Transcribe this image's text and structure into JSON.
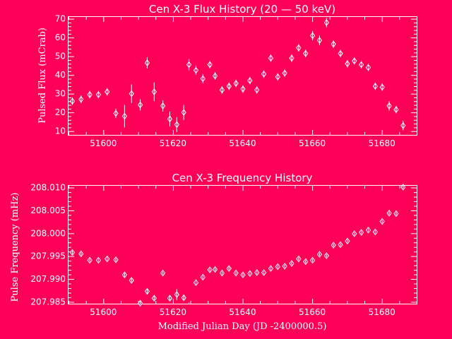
{
  "background": "#ff0059",
  "foreground": "#ffffff",
  "chart_data": [
    {
      "type": "scatter",
      "title": "Cen X-3 Flux History (20 — 50 keV)",
      "xlabel": "",
      "ylabel": "Pulsed Flux (mCrab)",
      "xlim": [
        51590,
        51690
      ],
      "ylim": [
        8,
        71
      ],
      "xticks": [
        51600,
        51620,
        51640,
        51660,
        51680
      ],
      "xtick_labels": [
        "51600",
        "51620",
        "51640",
        "51660",
        "51680"
      ],
      "yticks": [
        10,
        20,
        30,
        40,
        50,
        60,
        70
      ],
      "ytick_labels": [
        "10",
        "20",
        "30",
        "40",
        "50",
        "60",
        "70"
      ],
      "marker": "diamond",
      "error_bars": true,
      "series": [
        {
          "x": [
            51591,
            51593.5,
            51596,
            51598.5,
            51601,
            51603.5,
            51606,
            51608,
            51610.5,
            51612.5,
            51614.5,
            51617,
            51619,
            51621,
            51623,
            51624.5,
            51626.5,
            51628.5,
            51630.5,
            51632,
            51634,
            51636,
            51638,
            51640,
            51642,
            51644,
            51646,
            51648,
            51650,
            51652,
            51654,
            51656,
            51658,
            51660,
            51662,
            51664,
            51666,
            51668,
            51670,
            51672,
            51674,
            51676,
            51678,
            51680,
            51682,
            51684,
            51686
          ],
          "y": [
            26,
            27,
            29.5,
            29.5,
            31,
            19.5,
            18,
            30,
            24,
            46.5,
            31,
            23.5,
            16.5,
            13.5,
            20,
            45.5,
            42.5,
            38,
            45.5,
            39.5,
            32,
            34,
            35.5,
            32.5,
            37,
            32,
            40.5,
            49,
            39,
            41,
            49,
            54.5,
            51.5,
            61,
            58.5,
            68,
            56.5,
            51.5,
            46,
            47.5,
            45.5,
            44,
            34,
            33.5,
            23.5,
            21.5,
            13
          ],
          "err": [
            2,
            2,
            2,
            2,
            2,
            2.5,
            6,
            5,
            3,
            3,
            5,
            3,
            4,
            4,
            4,
            3,
            2.5,
            2.5,
            2,
            2,
            2,
            2,
            2,
            2,
            2,
            2,
            2,
            2,
            2,
            2,
            2,
            2,
            2,
            2.5,
            2.5,
            2.5,
            2,
            2,
            2,
            2,
            2,
            2,
            2,
            2,
            2.5,
            2,
            2.5
          ]
        }
      ]
    },
    {
      "type": "scatter",
      "title": "Cen X-3 Frequency History",
      "xlabel": "Modified Julian Day (JD -2400000.5)",
      "ylabel": "Pulse Frequency (mHz)",
      "xlim": [
        51590,
        51690
      ],
      "ylim": [
        207.9846,
        208.0104
      ],
      "xticks": [
        51600,
        51620,
        51640,
        51660,
        51680
      ],
      "xtick_labels": [
        "51600",
        "51620",
        "51640",
        "51660",
        "51680"
      ],
      "yticks": [
        207.985,
        207.99,
        207.995,
        208.0,
        208.005,
        208.01
      ],
      "ytick_labels": [
        "207.985",
        "207.990",
        "207.995",
        "208.000",
        "208.005",
        "208.010"
      ],
      "marker": "diamond",
      "error_bars": true,
      "series": [
        {
          "x": [
            51591,
            51593.5,
            51596,
            51598.5,
            51601,
            51603.5,
            51606,
            51608,
            51610.5,
            51612.5,
            51614.5,
            51617,
            51619,
            51621,
            51623,
            51624.5,
            51626.5,
            51628.5,
            51630.5,
            51632,
            51634,
            51636,
            51638,
            51640,
            51642,
            51644,
            51646,
            51648,
            51650,
            51652,
            51654,
            51656,
            51658,
            51660,
            51662,
            51664,
            51666,
            51668,
            51670,
            51672,
            51674,
            51676,
            51678,
            51680,
            51682,
            51684,
            51686
          ],
          "y": [
            207.9958,
            207.9955,
            207.9941,
            207.9941,
            207.9944,
            207.9942,
            207.9909,
            207.9897,
            207.9847,
            207.9873,
            207.9858,
            207.9913,
            207.9858,
            207.9866,
            207.9859,
            207.9844,
            207.9892,
            207.9904,
            207.992,
            207.9921,
            207.9913,
            207.9923,
            207.9913,
            207.9909,
            207.9912,
            207.9914,
            207.9914,
            207.9923,
            207.9927,
            207.9928,
            207.9934,
            207.9944,
            207.9938,
            207.9941,
            207.9954,
            207.9951,
            207.9974,
            207.9975,
            207.9983,
            207.9999,
            208.0002,
            208.0007,
            208.0003,
            208.0026,
            208.0044,
            208.0043,
            208.0101
          ],
          "err": [
            0.0004,
            0.0003,
            0.0003,
            0.0003,
            0.0003,
            0.0003,
            0.0004,
            0.0004,
            0.0005,
            0.0005,
            0.0005,
            0.0003,
            0.0005,
            0.0012,
            0.0006,
            0.0005,
            0.0003,
            0.0003,
            0.0003,
            0.0003,
            0.0003,
            0.0003,
            0.0003,
            0.0003,
            0.0003,
            0.0003,
            0.0003,
            0.0003,
            0.0003,
            0.0003,
            0.0003,
            0.0003,
            0.0003,
            0.0003,
            0.0003,
            0.0003,
            0.0003,
            0.0003,
            0.0003,
            0.0003,
            0.0003,
            0.0003,
            0.0003,
            0.0003,
            0.0003,
            0.0003,
            0.0003
          ]
        }
      ]
    }
  ]
}
